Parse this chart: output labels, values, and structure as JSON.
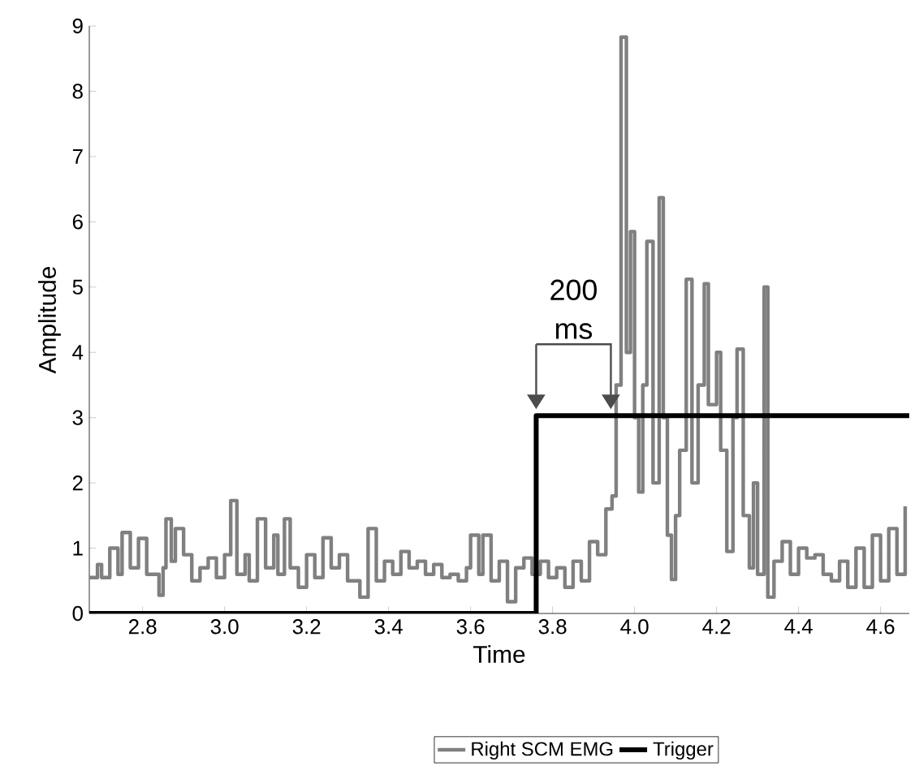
{
  "chart_data": {
    "type": "step",
    "xlabel": "Time",
    "ylabel": "Amplitude",
    "xlim": [
      2.67,
      4.67
    ],
    "ylim": [
      0,
      9
    ],
    "xticks": [
      {
        "value": 2.8,
        "label": "2.8"
      },
      {
        "value": 3.0,
        "label": "3.0"
      },
      {
        "value": 3.2,
        "label": "3.2"
      },
      {
        "value": 3.4,
        "label": "3.4"
      },
      {
        "value": 3.6,
        "label": "3.6"
      },
      {
        "value": 3.8,
        "label": "3.8"
      },
      {
        "value": 4.0,
        "label": "4.0"
      },
      {
        "value": 4.2,
        "label": "4.2"
      },
      {
        "value": 4.4,
        "label": "4.4"
      },
      {
        "value": 4.6,
        "label": "4.6"
      }
    ],
    "yticks": [
      0,
      1,
      2,
      3,
      4,
      5,
      6,
      7,
      8,
      9
    ],
    "series": [
      {
        "name": "Right SCM EMG",
        "color": "#808080",
        "x": [
          2.67,
          2.69,
          2.7,
          2.72,
          2.74,
          2.75,
          2.77,
          2.79,
          2.81,
          2.84,
          2.85,
          2.857,
          2.87,
          2.88,
          2.9,
          2.92,
          2.94,
          2.96,
          2.98,
          3.0,
          3.015,
          3.03,
          3.05,
          3.06,
          3.08,
          3.1,
          3.12,
          3.13,
          3.146,
          3.16,
          3.18,
          3.2,
          3.22,
          3.24,
          3.26,
          3.28,
          3.3,
          3.33,
          3.35,
          3.37,
          3.39,
          3.41,
          3.43,
          3.45,
          3.47,
          3.49,
          3.51,
          3.53,
          3.55,
          3.57,
          3.59,
          3.6,
          3.62,
          3.63,
          3.65,
          3.67,
          3.69,
          3.71,
          3.73,
          3.75,
          3.77,
          3.79,
          3.81,
          3.83,
          3.85,
          3.87,
          3.89,
          3.91,
          3.93,
          3.945,
          3.955,
          3.967,
          3.98,
          3.99,
          4.0,
          4.01,
          4.02,
          4.03,
          4.045,
          4.06,
          4.07,
          4.08,
          4.09,
          4.1,
          4.11,
          4.126,
          4.14,
          4.155,
          4.17,
          4.18,
          4.2,
          4.21,
          4.225,
          4.24,
          4.25,
          4.265,
          4.28,
          4.29,
          4.3,
          4.316,
          4.325,
          4.34,
          4.36,
          4.38,
          4.4,
          4.42,
          4.44,
          4.46,
          4.48,
          4.5,
          4.52,
          4.54,
          4.56,
          4.58,
          4.6,
          4.62,
          4.64,
          4.66
        ],
        "values": [
          0.55,
          0.75,
          0.55,
          1.0,
          0.6,
          1.24,
          0.7,
          1.15,
          0.6,
          0.28,
          0.7,
          1.45,
          0.8,
          1.3,
          0.9,
          0.5,
          0.7,
          0.85,
          0.55,
          0.9,
          1.73,
          0.6,
          0.9,
          0.5,
          1.45,
          0.7,
          1.2,
          0.6,
          1.45,
          0.7,
          0.4,
          0.9,
          0.55,
          1.16,
          0.7,
          0.9,
          0.5,
          0.25,
          1.3,
          0.5,
          0.8,
          0.6,
          0.95,
          0.7,
          0.8,
          0.6,
          0.75,
          0.55,
          0.6,
          0.5,
          0.7,
          1.2,
          0.6,
          1.2,
          0.5,
          0.8,
          0.18,
          0.7,
          0.85,
          0.6,
          0.8,
          0.55,
          0.7,
          0.4,
          0.8,
          0.5,
          1.1,
          0.9,
          1.6,
          1.8,
          3.5,
          8.83,
          4.0,
          5.85,
          3.0,
          1.86,
          3.5,
          5.7,
          2.0,
          6.37,
          3.0,
          1.2,
          0.52,
          1.5,
          2.5,
          5.12,
          2.0,
          3.5,
          5.05,
          3.2,
          4.0,
          2.5,
          0.95,
          3.0,
          4.05,
          1.5,
          0.7,
          2.0,
          0.6,
          5.0,
          0.25,
          0.8,
          1.1,
          0.6,
          1.0,
          0.85,
          0.9,
          0.6,
          0.5,
          0.8,
          0.4,
          1.0,
          0.4,
          1.2,
          0.5,
          1.3,
          0.6,
          1.64
        ]
      },
      {
        "name": "Trigger",
        "color": "#000000",
        "x": [
          2.67,
          3.76,
          4.67
        ],
        "values": [
          0,
          3.03,
          3.03
        ]
      }
    ],
    "annotations": [
      {
        "text": "200 ms",
        "x": 3.76,
        "y": 3.03
      }
    ],
    "legend": "bottom",
    "grid": false
  }
}
